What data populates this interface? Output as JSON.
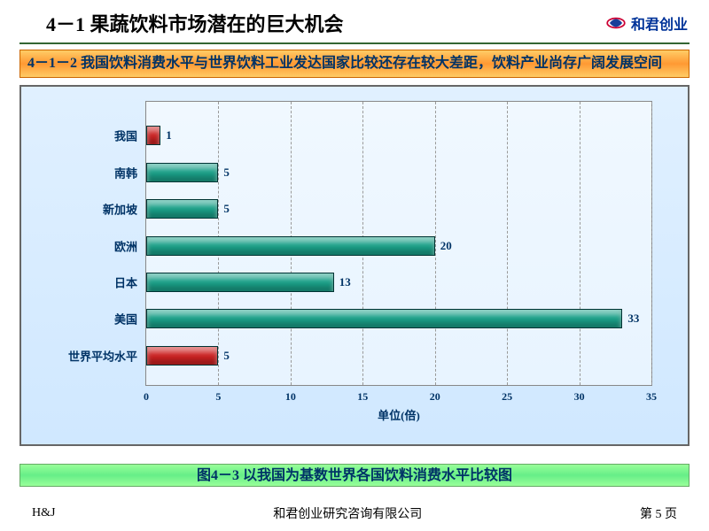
{
  "header": {
    "title": "4－1  果蔬饮料市场潜在的巨大机会",
    "brand_text": "和君创业",
    "brand_color": "#003399",
    "logo_outer": "#cc0033",
    "logo_inner": "#1a3e99"
  },
  "subtitle": "4－1－2  我国饮料消费水平与世界饮料工业发达国家比较还存在较大差距，饮料产业尚存广阔发展空间",
  "chart": {
    "type": "bar-horizontal",
    "background_gradient": [
      "#e0f0ff",
      "#d0e8ff"
    ],
    "plot_gradient": [
      "#f0f8ff",
      "#e8f4ff"
    ],
    "categories": [
      "我国",
      "南韩",
      "新加坡",
      "欧洲",
      "日本",
      "美国",
      "世界平均水平"
    ],
    "values": [
      1,
      5,
      5,
      20,
      13,
      33,
      5
    ],
    "bar_colors": [
      "#cc2222",
      "#1aa088",
      "#1aa088",
      "#1aa088",
      "#1aa088",
      "#1aa088",
      "#cc2222"
    ],
    "bar_border": "#003333",
    "xlim": [
      0,
      35
    ],
    "xtick_step": 5,
    "xlabel": "单位(倍)",
    "grid_color": "#999999",
    "value_label_color": "#003366",
    "label_fontsize": 13
  },
  "caption": "图4－3  以我国为基数世界各国饮料消费水平比较图",
  "footer": {
    "left": "H&J",
    "center": "和君创业研究咨询有限公司",
    "right": "第 5 页"
  }
}
